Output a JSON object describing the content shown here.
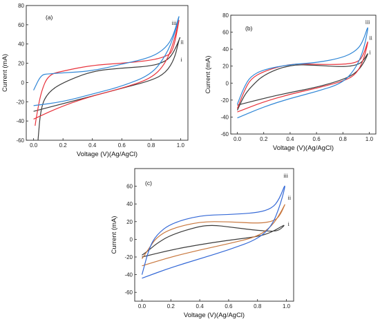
{
  "colors": {
    "i": "#3a3a3a",
    "ii": "#e8313a",
    "iii": "#2f86d6",
    "ii_panel_c": "#c8763c",
    "iii_panel_c": "#3267d6"
  },
  "chart_data": [
    {
      "type": "line",
      "panel_label": "(a)",
      "xlabel": "Voltage (V)(Ag/AgCl)",
      "ylabel": "Current (mA)",
      "xlim": [
        -0.05,
        1.05
      ],
      "ylim": [
        -60,
        80
      ],
      "xticks": [
        "0.0",
        "0.2",
        "0.4",
        "0.6",
        "0.8",
        "1.0"
      ],
      "yticks": [
        "-60",
        "-40",
        "-20",
        "0",
        "20",
        "40",
        "60",
        "80"
      ],
      "ytick_values": [
        -60,
        -40,
        -20,
        0,
        20,
        40,
        60,
        80
      ],
      "xtick_values": [
        0,
        0.2,
        0.4,
        0.6,
        0.8,
        1.0
      ],
      "series": [
        {
          "name": "i",
          "color_key": "i",
          "points": [
            [
              0.0,
              -30
            ],
            [
              0.2,
              -22
            ],
            [
              0.4,
              -14
            ],
            [
              0.6,
              -6
            ],
            [
              0.8,
              2
            ],
            [
              0.9,
              10
            ],
            [
              0.96,
              25
            ],
            [
              0.99,
              45
            ],
            [
              1.0,
              48
            ],
            [
              0.95,
              30
            ],
            [
              0.9,
              22
            ],
            [
              0.8,
              17
            ],
            [
              0.6,
              15
            ],
            [
              0.4,
              12
            ],
            [
              0.2,
              0
            ],
            [
              0.1,
              -10
            ],
            [
              0.05,
              -25
            ],
            [
              0.03,
              -60
            ]
          ]
        },
        {
          "name": "ii",
          "color_key": "ii",
          "points": [
            [
              0.0,
              -38
            ],
            [
              0.2,
              -24
            ],
            [
              0.4,
              -14
            ],
            [
              0.6,
              -6
            ],
            [
              0.8,
              4
            ],
            [
              0.9,
              20
            ],
            [
              0.96,
              45
            ],
            [
              1.0,
              73
            ],
            [
              0.95,
              32
            ],
            [
              0.9,
              27
            ],
            [
              0.8,
              23
            ],
            [
              0.6,
              20
            ],
            [
              0.4,
              18
            ],
            [
              0.2,
              12
            ],
            [
              0.1,
              8
            ],
            [
              0.05,
              -10
            ],
            [
              0.02,
              -35
            ],
            [
              0.01,
              -45
            ]
          ]
        },
        {
          "name": "iii",
          "color_key": "iii",
          "points": [
            [
              0.0,
              -24
            ],
            [
              0.2,
              -20
            ],
            [
              0.4,
              -12
            ],
            [
              0.6,
              -4
            ],
            [
              0.8,
              8
            ],
            [
              0.9,
              28
            ],
            [
              0.96,
              50
            ],
            [
              1.0,
              75
            ],
            [
              0.95,
              48
            ],
            [
              0.9,
              36
            ],
            [
              0.8,
              26
            ],
            [
              0.6,
              19
            ],
            [
              0.4,
              12
            ],
            [
              0.2,
              10
            ],
            [
              0.1,
              9
            ],
            [
              0.05,
              8
            ],
            [
              0.0,
              -8
            ]
          ]
        }
      ],
      "annotations": [
        "iii",
        "ii",
        "i"
      ]
    },
    {
      "type": "line",
      "panel_label": "(b)",
      "xlabel": "Voltage (V)(Ag/AgCl)",
      "ylabel": "Current (mA)",
      "xlim": [
        -0.05,
        1.05
      ],
      "ylim": [
        -60,
        80
      ],
      "xticks": [
        "0.0",
        "0.2",
        "0.4",
        "0.6",
        "0.8",
        "1.0"
      ],
      "yticks": [
        "-60",
        "-40",
        "-20",
        "0",
        "20",
        "40",
        "60",
        "80"
      ],
      "ytick_values": [
        -60,
        -40,
        -20,
        0,
        20,
        40,
        60,
        80
      ],
      "xtick_values": [
        0,
        0.2,
        0.4,
        0.6,
        0.8,
        1.0
      ],
      "series": [
        {
          "name": "i",
          "color_key": "i",
          "points": [
            [
              0.0,
              -26
            ],
            [
              0.2,
              -18
            ],
            [
              0.4,
              -11
            ],
            [
              0.6,
              -5
            ],
            [
              0.8,
              4
            ],
            [
              0.9,
              12
            ],
            [
              0.96,
              24
            ],
            [
              1.0,
              38
            ],
            [
              0.95,
              25
            ],
            [
              0.9,
              21
            ],
            [
              0.8,
              19
            ],
            [
              0.6,
              21
            ],
            [
              0.4,
              22
            ],
            [
              0.2,
              10
            ],
            [
              0.1,
              -5
            ],
            [
              0.05,
              -15
            ],
            [
              0.0,
              -32
            ]
          ]
        },
        {
          "name": "ii",
          "color_key": "ii",
          "points": [
            [
              0.0,
              -34
            ],
            [
              0.2,
              -22
            ],
            [
              0.4,
              -13
            ],
            [
              0.6,
              -6
            ],
            [
              0.8,
              2
            ],
            [
              0.9,
              10
            ],
            [
              0.96,
              28
            ],
            [
              1.0,
              55
            ],
            [
              0.95,
              30
            ],
            [
              0.9,
              24
            ],
            [
              0.8,
              22
            ],
            [
              0.6,
              22
            ],
            [
              0.4,
              23
            ],
            [
              0.2,
              14
            ],
            [
              0.1,
              5
            ],
            [
              0.05,
              -10
            ],
            [
              0.0,
              -30
            ]
          ]
        },
        {
          "name": "iii",
          "color_key": "iii",
          "points": [
            [
              0.0,
              -41
            ],
            [
              0.2,
              -28
            ],
            [
              0.4,
              -18
            ],
            [
              0.6,
              -10
            ],
            [
              0.8,
              0
            ],
            [
              0.9,
              18
            ],
            [
              0.96,
              40
            ],
            [
              1.0,
              72
            ],
            [
              0.95,
              48
            ],
            [
              0.9,
              38
            ],
            [
              0.8,
              30
            ],
            [
              0.6,
              24
            ],
            [
              0.4,
              22
            ],
            [
              0.2,
              16
            ],
            [
              0.1,
              8
            ],
            [
              0.05,
              -5
            ],
            [
              0.0,
              -25
            ]
          ]
        }
      ],
      "annotations": [
        "iii",
        "ii",
        "i"
      ]
    },
    {
      "type": "line",
      "panel_label": "(c)",
      "xlabel": "Voltage (V)(Ag/AgCl)",
      "ylabel": "Current (mA)",
      "xlim": [
        -0.05,
        1.05
      ],
      "ylim": [
        -70,
        80
      ],
      "xticks": [
        "0.0",
        "0.2",
        "0.4",
        "0.6",
        "0.8",
        "1.0"
      ],
      "yticks": [
        "-60",
        "-40",
        "-20",
        "0",
        "20",
        "40",
        "60"
      ],
      "ytick_values": [
        -60,
        -40,
        -20,
        0,
        20,
        40,
        60
      ],
      "xtick_values": [
        0,
        0.2,
        0.4,
        0.6,
        0.8,
        1.0
      ],
      "series": [
        {
          "name": "i",
          "color_key": "i",
          "points": [
            [
              0.0,
              -20
            ],
            [
              0.2,
              -12
            ],
            [
              0.4,
              -6
            ],
            [
              0.6,
              -1
            ],
            [
              0.8,
              3
            ],
            [
              0.9,
              8
            ],
            [
              1.0,
              18
            ],
            [
              0.95,
              10
            ],
            [
              0.9,
              9
            ],
            [
              0.8,
              10
            ],
            [
              0.6,
              14
            ],
            [
              0.5,
              16
            ],
            [
              0.4,
              15
            ],
            [
              0.2,
              5
            ],
            [
              0.1,
              -5
            ],
            [
              0.05,
              -12
            ],
            [
              0.0,
              -18
            ]
          ]
        },
        {
          "name": "ii",
          "color_key": "ii_panel_c",
          "points": [
            [
              0.0,
              -30
            ],
            [
              0.2,
              -20
            ],
            [
              0.4,
              -12
            ],
            [
              0.6,
              -5
            ],
            [
              0.8,
              3
            ],
            [
              0.9,
              15
            ],
            [
              0.96,
              30
            ],
            [
              1.0,
              43
            ],
            [
              0.95,
              25
            ],
            [
              0.9,
              20
            ],
            [
              0.8,
              18
            ],
            [
              0.6,
              20
            ],
            [
              0.4,
              20
            ],
            [
              0.2,
              12
            ],
            [
              0.1,
              2
            ],
            [
              0.05,
              -10
            ],
            [
              0.0,
              -22
            ]
          ]
        },
        {
          "name": "iii",
          "color_key": "iii_panel_c",
          "points": [
            [
              0.0,
              -44
            ],
            [
              0.2,
              -32
            ],
            [
              0.4,
              -22
            ],
            [
              0.6,
              -12
            ],
            [
              0.8,
              0
            ],
            [
              0.9,
              15
            ],
            [
              0.96,
              40
            ],
            [
              1.0,
              66
            ],
            [
              0.95,
              45
            ],
            [
              0.9,
              35
            ],
            [
              0.8,
              30
            ],
            [
              0.6,
              28
            ],
            [
              0.4,
              27
            ],
            [
              0.2,
              18
            ],
            [
              0.1,
              5
            ],
            [
              0.05,
              -10
            ],
            [
              0.0,
              -40
            ]
          ]
        }
      ],
      "annotations": [
        "iii",
        "ii",
        "i"
      ]
    }
  ]
}
